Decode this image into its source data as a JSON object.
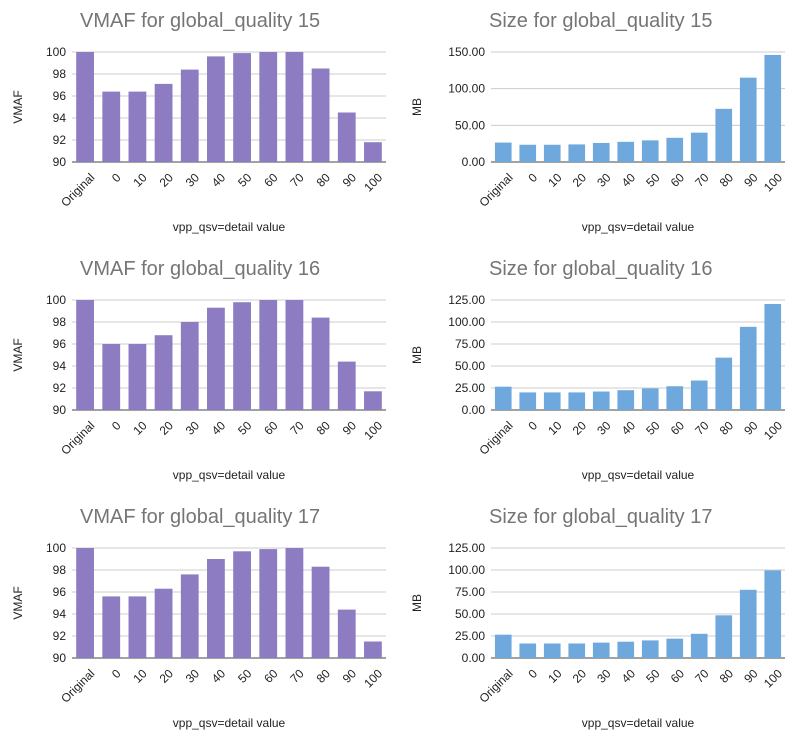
{
  "chart_data": [
    {
      "type": "bar",
      "title": "VMAF for global_quality 15",
      "xlabel": "vpp_qsv=detail value",
      "ylabel": "VMAF",
      "categories": [
        "Original",
        "0",
        "10",
        "20",
        "30",
        "40",
        "50",
        "60",
        "70",
        "80",
        "90",
        "100"
      ],
      "values": [
        100,
        96.4,
        96.4,
        97.1,
        98.4,
        99.6,
        99.9,
        100,
        100,
        98.5,
        94.5,
        91.8
      ],
      "ylim": [
        90,
        100
      ],
      "yticks": [
        "90",
        "92",
        "94",
        "96",
        "98",
        "100"
      ],
      "color": "#8e7cc3",
      "grid": true
    },
    {
      "type": "bar",
      "title": "Size for global_quality 15",
      "xlabel": "vpp_qsv=detail value",
      "ylabel": "MB",
      "categories": [
        "Original",
        "0",
        "10",
        "20",
        "30",
        "40",
        "50",
        "60",
        "70",
        "80",
        "90",
        "100"
      ],
      "values": [
        26.5,
        23.5,
        23.5,
        24,
        26,
        27.5,
        29.5,
        33,
        40,
        72.5,
        115,
        146
      ],
      "ylim": [
        0,
        150
      ],
      "yticks": [
        "0.00",
        "50.00",
        "100.00",
        "150.00"
      ],
      "color": "#6fa8dc",
      "grid": true
    },
    {
      "type": "bar",
      "title": "VMAF for global_quality 16",
      "xlabel": "vpp_qsv=detail value",
      "ylabel": "VMAF",
      "categories": [
        "Original",
        "0",
        "10",
        "20",
        "30",
        "40",
        "50",
        "60",
        "70",
        "80",
        "90",
        "100"
      ],
      "values": [
        100,
        96,
        96,
        96.8,
        98,
        99.3,
        99.8,
        100,
        100,
        98.4,
        94.4,
        91.7
      ],
      "ylim": [
        90,
        100
      ],
      "yticks": [
        "90",
        "92",
        "94",
        "96",
        "98",
        "100"
      ],
      "color": "#8e7cc3",
      "grid": true
    },
    {
      "type": "bar",
      "title": "Size for global_quality 16",
      "xlabel": "vpp_qsv=detail value",
      "ylabel": "MB",
      "categories": [
        "Original",
        "0",
        "10",
        "20",
        "30",
        "40",
        "50",
        "60",
        "70",
        "80",
        "90",
        "100"
      ],
      "values": [
        26.5,
        20,
        20,
        20,
        21,
        22.5,
        24.5,
        27,
        33.5,
        59.5,
        94.5,
        120.5
      ],
      "ylim": [
        0,
        125
      ],
      "yticks": [
        "0.00",
        "25.00",
        "50.00",
        "75.00",
        "100.00",
        "125.00"
      ],
      "color": "#6fa8dc",
      "grid": true
    },
    {
      "type": "bar",
      "title": "VMAF for global_quality 17",
      "xlabel": "vpp_qsv=detail value",
      "ylabel": "VMAF",
      "categories": [
        "Original",
        "0",
        "10",
        "20",
        "30",
        "40",
        "50",
        "60",
        "70",
        "80",
        "90",
        "100"
      ],
      "values": [
        100,
        95.6,
        95.6,
        96.3,
        97.6,
        99,
        99.7,
        99.9,
        100,
        98.3,
        94.4,
        91.5
      ],
      "ylim": [
        90,
        100
      ],
      "yticks": [
        "90",
        "92",
        "94",
        "96",
        "98",
        "100"
      ],
      "color": "#8e7cc3",
      "grid": true
    },
    {
      "type": "bar",
      "title": "Size for global_quality 17",
      "xlabel": "vpp_qsv=detail value",
      "ylabel": "MB",
      "categories": [
        "Original",
        "0",
        "10",
        "20",
        "30",
        "40",
        "50",
        "60",
        "70",
        "80",
        "90",
        "100"
      ],
      "values": [
        26.5,
        16.5,
        16.5,
        16.5,
        17.5,
        18.5,
        20,
        22,
        27.5,
        48.5,
        77.5,
        99.5
      ],
      "ylim": [
        0,
        125
      ],
      "yticks": [
        "0.00",
        "25.00",
        "50.00",
        "75.00",
        "100.00",
        "125.00"
      ],
      "color": "#6fa8dc",
      "grid": true
    }
  ]
}
